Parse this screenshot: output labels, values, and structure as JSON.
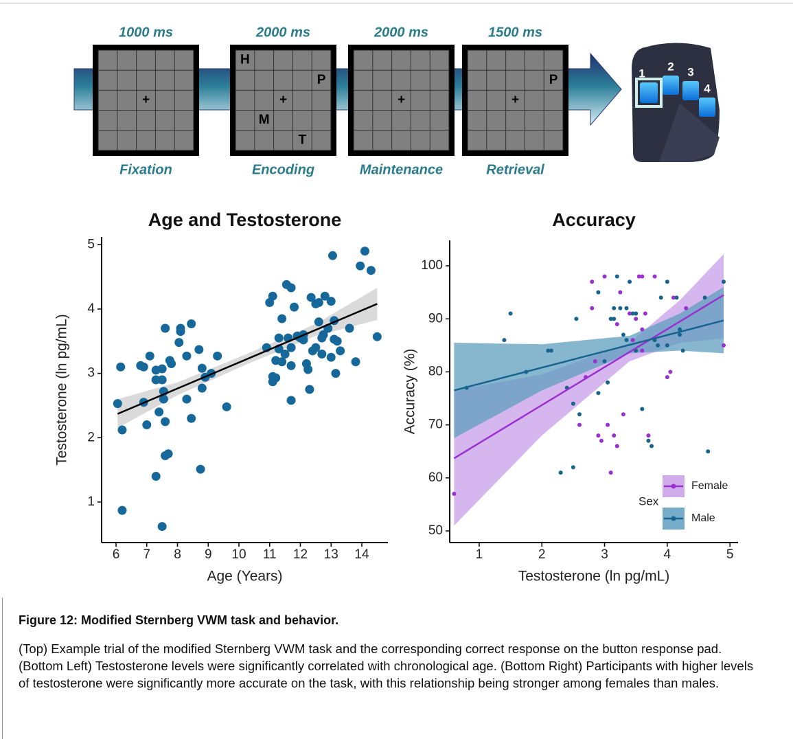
{
  "task": {
    "cross": "+",
    "stages": [
      {
        "duration": "1000 ms",
        "label": "Fixation",
        "letters": []
      },
      {
        "duration": "2000 ms",
        "label": "Encoding",
        "letters": [
          "H",
          "P",
          "M",
          "T"
        ]
      },
      {
        "duration": "2000 ms",
        "label": "Maintenance",
        "letters": []
      },
      {
        "duration": "1500 ms",
        "label": "Retrieval",
        "letters": [
          "P"
        ]
      }
    ],
    "response_pad": {
      "buttons": [
        "1",
        "2",
        "3",
        "4"
      ]
    }
  },
  "chart_data": [
    {
      "type": "scatter",
      "title": "Age and Testosterone",
      "x_label": "Age (Years)",
      "y_label": "Testosterone (ln pg/mL)",
      "color": "#16679a",
      "x": [
        6.05,
        6.15,
        6.2,
        6.2,
        6.8,
        6.9,
        6.9,
        7.0,
        7.1,
        7.3,
        7.3,
        7.3,
        7.4,
        7.5,
        7.5,
        7.55,
        7.55,
        7.6,
        7.6,
        7.7,
        7.6,
        7.5,
        7.8,
        7.75,
        8.1,
        8.1,
        8.05,
        8.3,
        8.3,
        8.45,
        8.45,
        8.7,
        8.75,
        8.8,
        8.8,
        8.9,
        9.1,
        9.3,
        9.6,
        10.9,
        11.0,
        11.1,
        11.1,
        11.1,
        11.2,
        11.2,
        11.3,
        11.3,
        11.4,
        11.4,
        11.5,
        11.55,
        11.6,
        11.7,
        11.7,
        11.7,
        11.8,
        11.7,
        11.9,
        12.0,
        12.1,
        12.25,
        12.3,
        12.2,
        12.35,
        12.5,
        12.6,
        12.5,
        12.6,
        12.7,
        12.7,
        12.75,
        12.8,
        12.9,
        13.0,
        13.05,
        13.1,
        13.0,
        13.15,
        13.2,
        13.3,
        13.6,
        13.8,
        13.95,
        14.1,
        14.3,
        14.5,
        12.4,
        12.1,
        13.1
      ],
      "values": [
        2.53,
        3.1,
        2.12,
        0.87,
        3.12,
        3.1,
        2.55,
        2.2,
        3.27,
        3.05,
        2.9,
        1.4,
        2.4,
        3.07,
        2.9,
        2.72,
        2.6,
        3.7,
        1.72,
        1.75,
        2.25,
        0.62,
        3.15,
        3.2,
        3.7,
        3.65,
        3.48,
        3.27,
        2.6,
        3.77,
        2.3,
        3.37,
        1.51,
        3.08,
        2.77,
        2.94,
        3.0,
        3.27,
        2.48,
        3.4,
        4.1,
        4.2,
        2.95,
        2.87,
        3.2,
        2.93,
        3.55,
        3.38,
        3.18,
        3.85,
        3.3,
        4.38,
        3.55,
        4.33,
        3.12,
        2.58,
        4.03,
        3.4,
        3.58,
        3.55,
        3.52,
        3.06,
        2.75,
        3.15,
        4.18,
        4.08,
        4.1,
        3.4,
        3.8,
        3.55,
        3.3,
        3.6,
        4.2,
        3.7,
        4.12,
        4.83,
        3.82,
        3.25,
        3.0,
        3.5,
        3.35,
        3.7,
        3.18,
        4.67,
        4.9,
        4.6,
        3.57,
        3.35,
        3.6,
        3.53
      ],
      "fit": {
        "x": [
          6.05,
          14.5
        ],
        "values": [
          2.37,
          4.08
        ],
        "color": "#000000"
      },
      "ci": {
        "x": [
          6.05,
          8,
          10.3,
          12.5,
          14.5
        ],
        "lower": [
          2.15,
          2.66,
          3.15,
          3.58,
          3.83
        ],
        "upper": [
          2.6,
          2.86,
          3.31,
          3.77,
          4.33
        ],
        "color": "#d6d6d6"
      },
      "xlim": [
        5.53,
        14.85
      ],
      "ylim": [
        0.37,
        5.12
      ],
      "xticks": [
        6,
        7,
        8,
        9,
        10,
        11,
        12,
        13,
        14
      ],
      "yticks": [
        1,
        2,
        3,
        4,
        5
      ]
    },
    {
      "type": "scatter",
      "title": "Accuracy",
      "x_label": "Testosterone (ln pg/mL)",
      "y_label": "Accuracy (%)",
      "legend_title": "Sex",
      "legend": "bottom right",
      "series": [
        {
          "name": "Female",
          "color": "#9b30d0",
          "x": [
            0.6,
            2.6,
            2.7,
            2.8,
            2.8,
            2.9,
            2.95,
            3.0,
            3.05,
            3.1,
            3.15,
            3.2,
            3.25,
            3.3,
            3.4,
            3.5,
            3.55,
            3.6,
            3.6,
            3.7,
            3.8,
            4.0,
            4.05,
            4.1,
            4.3,
            4.9,
            2.85,
            3.2,
            3.5,
            3.45,
            3.6,
            3.65
          ],
          "values": [
            57,
            70,
            79,
            92,
            97,
            68,
            67,
            98,
            70,
            61,
            68,
            66,
            95,
            72,
            91,
            91,
            98,
            88,
            84,
            68,
            98,
            79,
            80,
            94,
            92,
            85,
            82,
            89,
            90,
            86,
            98,
            91
          ],
          "fit": {
            "x": [
              0.6,
              4.9
            ],
            "values": [
              63.7,
              94.5
            ]
          },
          "ci": {
            "x": [
              0.6,
              2,
              3.4,
              4.2,
              4.9
            ],
            "lower": [
              51,
              68,
              82,
              85.5,
              86.3
            ],
            "upper": [
              76.5,
              79.5,
              85.5,
              93.5,
              102.2
            ],
            "color": "#c89ee8"
          }
        },
        {
          "name": "Male",
          "color": "#17648f",
          "x": [
            0.8,
            1.4,
            1.5,
            1.75,
            2.1,
            2.15,
            2.3,
            2.4,
            2.5,
            2.5,
            2.55,
            2.6,
            2.9,
            2.9,
            3.0,
            3.05,
            3.1,
            3.15,
            3.15,
            3.2,
            3.25,
            3.35,
            3.35,
            3.4,
            3.45,
            3.5,
            3.5,
            3.6,
            3.7,
            3.75,
            3.8,
            3.85,
            3.9,
            4.0,
            4.0,
            4.15,
            4.2,
            4.25,
            4.6,
            4.65,
            4.9,
            4.2,
            3.3
          ],
          "values": [
            77,
            86,
            91,
            80,
            84,
            84,
            61,
            77,
            74,
            62,
            90,
            72,
            76,
            95,
            82,
            78,
            90,
            90,
            92,
            98,
            92,
            92,
            86,
            97,
            91,
            91,
            84,
            73,
            67,
            66,
            86,
            85,
            94,
            97,
            85,
            94,
            88,
            84,
            94,
            65,
            97,
            87,
            87
          ],
          "fit": {
            "x": [
              0.6,
              4.9
            ],
            "values": [
              76.5,
              89.7
            ]
          },
          "ci": {
            "x": [
              0.6,
              2,
              3.4,
              4.2,
              4.9
            ],
            "lower": [
              67.5,
              76.5,
              83.5,
              84,
              83.5
            ],
            "upper": [
              85.5,
              85.2,
              86.8,
              91,
              96
            ],
            "color": "#5f9dbf"
          }
        }
      ],
      "xlim": [
        0.53,
        5.13
      ],
      "ylim": [
        47.8,
        104.8
      ],
      "xticks": [
        1,
        2,
        3,
        4,
        5
      ],
      "yticks": [
        50,
        60,
        70,
        80,
        90,
        100
      ]
    }
  ],
  "caption": {
    "title": "Figure 12: Modified Sternberg VWM task and behavior.",
    "text": "(Top) Example trial of the modified Sternberg VWM task and the corresponding correct response on the button response pad. (Bottom Left) Testosterone levels were significantly correlated with chronological age. (Bottom Right) Participants with higher levels of testosterone were significantly more accurate on the task, with this relationship being stronger among females than males."
  }
}
